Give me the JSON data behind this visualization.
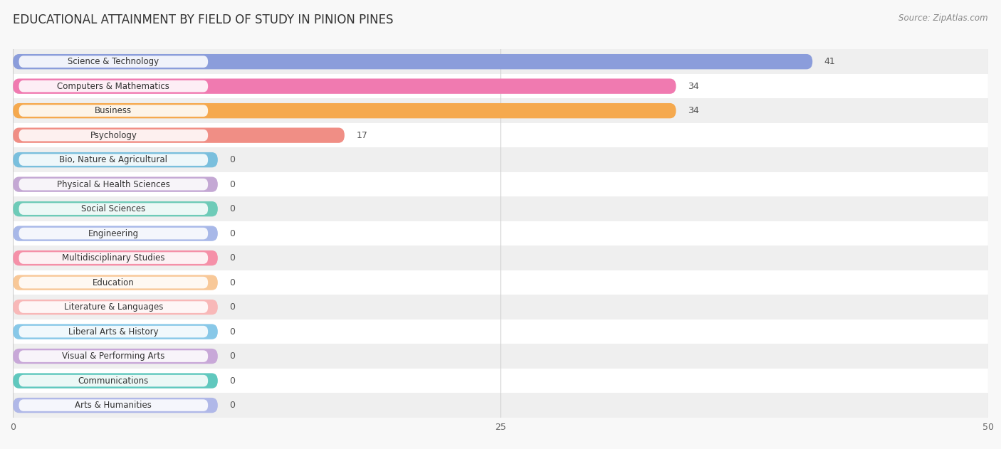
{
  "title": "EDUCATIONAL ATTAINMENT BY FIELD OF STUDY IN PINION PINES",
  "source": "Source: ZipAtlas.com",
  "categories": [
    "Science & Technology",
    "Computers & Mathematics",
    "Business",
    "Psychology",
    "Bio, Nature & Agricultural",
    "Physical & Health Sciences",
    "Social Sciences",
    "Engineering",
    "Multidisciplinary Studies",
    "Education",
    "Literature & Languages",
    "Liberal Arts & History",
    "Visual & Performing Arts",
    "Communications",
    "Arts & Humanities"
  ],
  "values": [
    41,
    34,
    34,
    17,
    0,
    0,
    0,
    0,
    0,
    0,
    0,
    0,
    0,
    0,
    0
  ],
  "bar_colors": [
    "#8b9ddb",
    "#f07ab0",
    "#f5a94e",
    "#f08e85",
    "#7abfdd",
    "#c4a8d4",
    "#6ecbb8",
    "#a8b8e8",
    "#f590a8",
    "#f8c898",
    "#f8b8b8",
    "#88c8e8",
    "#c8a8d8",
    "#60c8be",
    "#b0b8e8"
  ],
  "xlim": [
    0,
    50
  ],
  "xticks": [
    0,
    25,
    50
  ],
  "background_color": "#f8f8f8",
  "title_fontsize": 12,
  "label_fontsize": 8.5,
  "value_fontsize": 9,
  "bar_height": 0.62,
  "min_bar_width": 10.5
}
